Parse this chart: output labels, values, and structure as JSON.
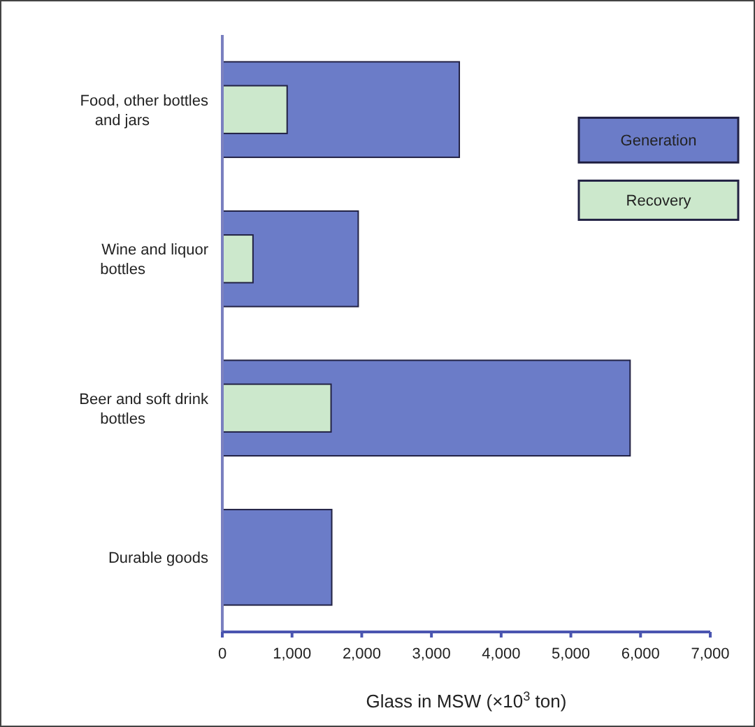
{
  "chart_data": {
    "type": "bar",
    "orientation": "horizontal",
    "xlabel": "Glass in MSW (×10$^{3}$ ton)",
    "categories": [
      "Food, other bottles and jars",
      "Wine and liquor bottles",
      "Beer and soft drink bottles",
      "Durable goods"
    ],
    "series": [
      {
        "name": "Generation",
        "color": "#6b7cc8",
        "values": [
          3400,
          1950,
          5850,
          1570
        ]
      },
      {
        "name": "Recovery",
        "color": "#cce8cc",
        "values": [
          930,
          440,
          1560,
          null
        ]
      }
    ],
    "xlim": [
      0,
      7000
    ],
    "xticks": [
      {
        "value": 0,
        "label": "0"
      },
      {
        "value": 1000,
        "label": "1,000"
      },
      {
        "value": 2000,
        "label": "2,000"
      },
      {
        "value": 3000,
        "label": "3,000"
      },
      {
        "value": 4000,
        "label": "4,000"
      },
      {
        "value": 5000,
        "label": "5,000"
      },
      {
        "value": 6000,
        "label": "6,000"
      },
      {
        "value": 7000,
        "label": "7,000"
      }
    ],
    "legend": "top right",
    "grid": false
  }
}
